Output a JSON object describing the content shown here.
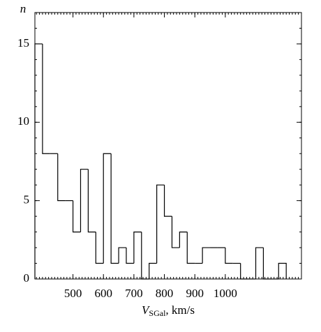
{
  "chart_data": {
    "type": "histogram",
    "y_label": "n",
    "x_label": "V",
    "x_label_subscript": "SGal",
    "x_label_unit": ", km/s",
    "bins": [
      375,
      400,
      425,
      450,
      475,
      500,
      525,
      550,
      575,
      600,
      625,
      650,
      675,
      700,
      725,
      750,
      775,
      800,
      825,
      850,
      875,
      900,
      925,
      950,
      975,
      1000,
      1025,
      1050,
      1075,
      1100,
      1125,
      1150,
      1175,
      1200
    ],
    "values": [
      15,
      8,
      8,
      5,
      5,
      3,
      7,
      3,
      1,
      8,
      1,
      2,
      1,
      3,
      0,
      1,
      6,
      4,
      2,
      3,
      1,
      1,
      2,
      2,
      2,
      1,
      1,
      0,
      0,
      2,
      0,
      0,
      1
    ],
    "color": "#000000",
    "xlim": [
      375,
      1250
    ],
    "ylim": [
      0,
      17
    ],
    "xticks": [
      500,
      600,
      700,
      800,
      900,
      1000
    ],
    "yticks": [
      0,
      5,
      10,
      15
    ],
    "grid": false
  }
}
